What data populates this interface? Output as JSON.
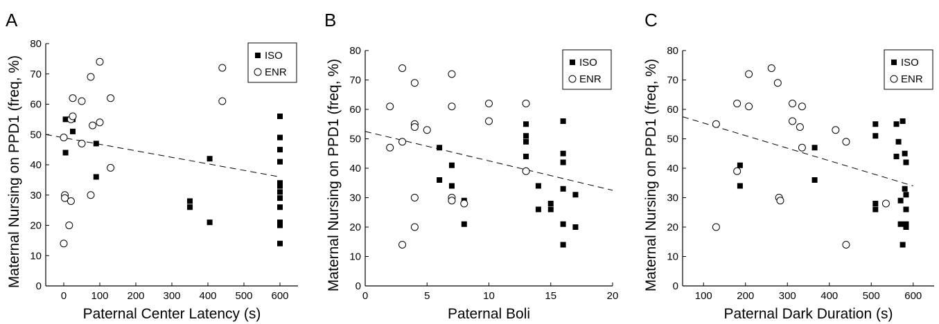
{
  "chart_data": [
    {
      "type": "scatter",
      "panel_label": "A",
      "title": "",
      "xlabel": "Paternal Center Latency (s)",
      "ylabel": "Maternal Nursing on PPD1 (freq, %)",
      "xlim": [
        -50,
        650
      ],
      "ylim": [
        0,
        80
      ],
      "xticks": [
        0,
        100,
        200,
        300,
        400,
        500,
        600
      ],
      "yticks": [
        0,
        10,
        20,
        30,
        40,
        50,
        60,
        70,
        80
      ],
      "grid": false,
      "legend_position": "top-right",
      "series": [
        {
          "name": "ISO",
          "marker": "filled-square",
          "points": [
            [
              5,
              55
            ],
            [
              5,
              44
            ],
            [
              25,
              55
            ],
            [
              25,
              51
            ],
            [
              90,
              47
            ],
            [
              90,
              36
            ],
            [
              350,
              28
            ],
            [
              350,
              26
            ],
            [
              405,
              42
            ],
            [
              405,
              21
            ],
            [
              600,
              56
            ],
            [
              600,
              49
            ],
            [
              600,
              45
            ],
            [
              600,
              41
            ],
            [
              600,
              34
            ],
            [
              600,
              33
            ],
            [
              600,
              31
            ],
            [
              600,
              29
            ],
            [
              600,
              26
            ],
            [
              600,
              21
            ],
            [
              600,
              20
            ],
            [
              600,
              14
            ]
          ]
        },
        {
          "name": "ENR",
          "marker": "open-circle",
          "points": [
            [
              0,
              49
            ],
            [
              3,
              30
            ],
            [
              3,
              29
            ],
            [
              0,
              14
            ],
            [
              15,
              20
            ],
            [
              20,
              28
            ],
            [
              20,
              55
            ],
            [
              25,
              56
            ],
            [
              25,
              62
            ],
            [
              50,
              61
            ],
            [
              50,
              47
            ],
            [
              75,
              69
            ],
            [
              75,
              30
            ],
            [
              80,
              53
            ],
            [
              100,
              74
            ],
            [
              100,
              54
            ],
            [
              130,
              62
            ],
            [
              130,
              39
            ],
            [
              440,
              72
            ],
            [
              440,
              61
            ]
          ]
        }
      ],
      "trendline": {
        "style": "dashed",
        "x": [
          -50,
          600
        ],
        "y": [
          50,
          36
        ]
      }
    },
    {
      "type": "scatter",
      "panel_label": "B",
      "title": "",
      "xlabel": "Paternal Boli",
      "ylabel": "Maternal Nursing on PPD1 (freq, %)",
      "xlim": [
        0,
        20
      ],
      "ylim": [
        0,
        80
      ],
      "xticks": [
        0,
        5,
        10,
        15,
        20
      ],
      "yticks": [
        0,
        10,
        20,
        30,
        40,
        50,
        60,
        70,
        80
      ],
      "grid": false,
      "legend_position": "top-right",
      "series": [
        {
          "name": "ISO",
          "marker": "filled-square",
          "points": [
            [
              6,
              47
            ],
            [
              6,
              36
            ],
            [
              7,
              41
            ],
            [
              7,
              34
            ],
            [
              8,
              29
            ],
            [
              8,
              21
            ],
            [
              13,
              55
            ],
            [
              13,
              51
            ],
            [
              13,
              49
            ],
            [
              13,
              44
            ],
            [
              14,
              34
            ],
            [
              14,
              26
            ],
            [
              15,
              28
            ],
            [
              15,
              26
            ],
            [
              16,
              56
            ],
            [
              16,
              45
            ],
            [
              16,
              42
            ],
            [
              16,
              33
            ],
            [
              16,
              21
            ],
            [
              16,
              14
            ],
            [
              17,
              31
            ],
            [
              17,
              20
            ]
          ]
        },
        {
          "name": "ENR",
          "marker": "open-circle",
          "points": [
            [
              2,
              61
            ],
            [
              2,
              47
            ],
            [
              3,
              74
            ],
            [
              3,
              49
            ],
            [
              3,
              14
            ],
            [
              4,
              69
            ],
            [
              4,
              55
            ],
            [
              4,
              54
            ],
            [
              4,
              30
            ],
            [
              4,
              20
            ],
            [
              5,
              53
            ],
            [
              7,
              72
            ],
            [
              7,
              61
            ],
            [
              7,
              30
            ],
            [
              7,
              29
            ],
            [
              8,
              28
            ],
            [
              10,
              62
            ],
            [
              10,
              56
            ],
            [
              13,
              62
            ],
            [
              13,
              39
            ]
          ]
        }
      ],
      "trendline": {
        "style": "dashed",
        "x": [
          0,
          20
        ],
        "y": [
          52.5,
          32.5
        ]
      }
    },
    {
      "type": "scatter",
      "panel_label": "C",
      "title": "",
      "xlabel": "Paternal Dark Duration (s)",
      "ylabel": "Maternal Nursing on PPD1 (freq, %)",
      "xlim": [
        50,
        650
      ],
      "ylim": [
        0,
        80
      ],
      "xticks": [
        100,
        200,
        300,
        400,
        500,
        600
      ],
      "yticks": [
        0,
        10,
        20,
        30,
        40,
        50,
        60,
        70,
        80
      ],
      "grid": false,
      "legend_position": "top-right",
      "series": [
        {
          "name": "ISO",
          "marker": "filled-square",
          "points": [
            [
              187,
              41
            ],
            [
              187,
              34
            ],
            [
              365,
              47
            ],
            [
              365,
              36
            ],
            [
              510,
              55
            ],
            [
              510,
              51
            ],
            [
              510,
              28
            ],
            [
              510,
              26
            ],
            [
              560,
              55
            ],
            [
              565,
              49
            ],
            [
              560,
              44
            ],
            [
              570,
              29
            ],
            [
              570,
              21
            ],
            [
              575,
              56
            ],
            [
              575,
              14
            ],
            [
              580,
              45
            ],
            [
              580,
              33
            ],
            [
              583,
              42
            ],
            [
              583,
              31
            ],
            [
              583,
              26
            ],
            [
              583,
              21
            ],
            [
              583,
              20
            ]
          ]
        },
        {
          "name": "ENR",
          "marker": "open-circle",
          "points": [
            [
              130,
              55
            ],
            [
              130,
              20
            ],
            [
              180,
              62
            ],
            [
              180,
              39
            ],
            [
              208,
              72
            ],
            [
              208,
              61
            ],
            [
              262,
              74
            ],
            [
              277,
              69
            ],
            [
              280,
              30
            ],
            [
              283,
              29
            ],
            [
              312,
              62
            ],
            [
              312,
              56
            ],
            [
              330,
              54
            ],
            [
              335,
              47
            ],
            [
              335,
              61
            ],
            [
              415,
              53
            ],
            [
              440,
              49
            ],
            [
              440,
              14
            ],
            [
              535,
              28
            ]
          ]
        }
      ],
      "trendline": {
        "style": "dashed",
        "x": [
          50,
          600
        ],
        "y": [
          57.5,
          34
        ]
      }
    }
  ]
}
